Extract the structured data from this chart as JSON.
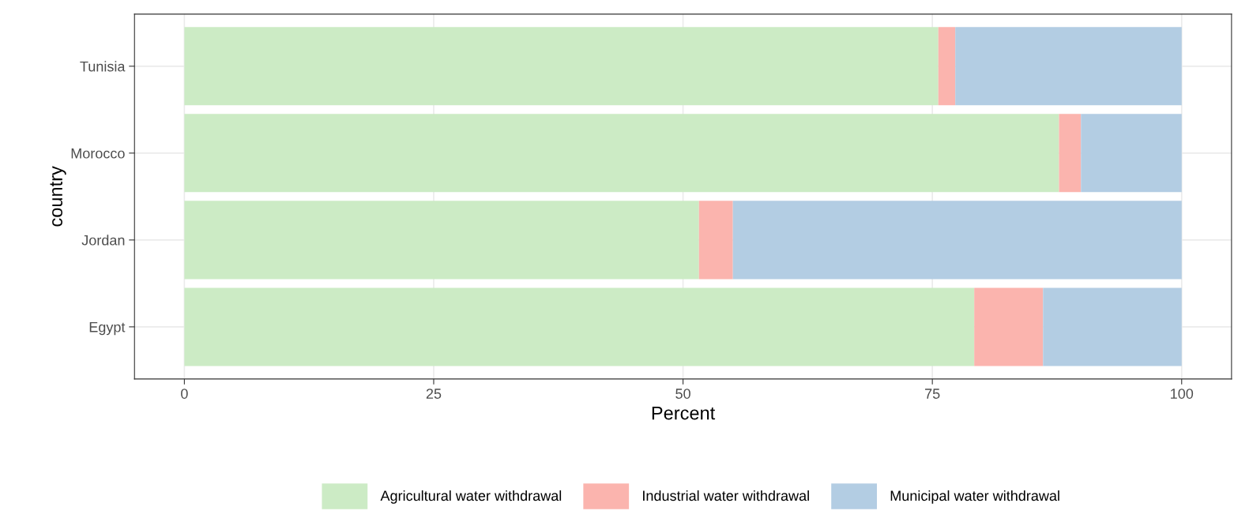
{
  "chart_data": {
    "type": "bar",
    "orientation": "horizontal",
    "stacked": true,
    "categories": [
      "Tunisia",
      "Morocco",
      "Jordan",
      "Egypt"
    ],
    "series": [
      {
        "name": "Agricultural water withdrawal",
        "color": "#ccebc5",
        "values": [
          75.6,
          87.7,
          51.6,
          79.2
        ]
      },
      {
        "name": "Industrial water withdrawal",
        "color": "#fbb4ae",
        "values": [
          1.7,
          2.2,
          3.4,
          6.9
        ]
      },
      {
        "name": "Municipal water withdrawal",
        "color": "#b3cde3",
        "values": [
          22.7,
          10.1,
          45.0,
          13.9
        ]
      }
    ],
    "xlabel": "Percent",
    "ylabel": "country",
    "xlim": [
      -5,
      105
    ],
    "xticks": [
      0,
      25,
      50,
      75,
      100
    ],
    "grid": true,
    "legend": "bottom"
  }
}
